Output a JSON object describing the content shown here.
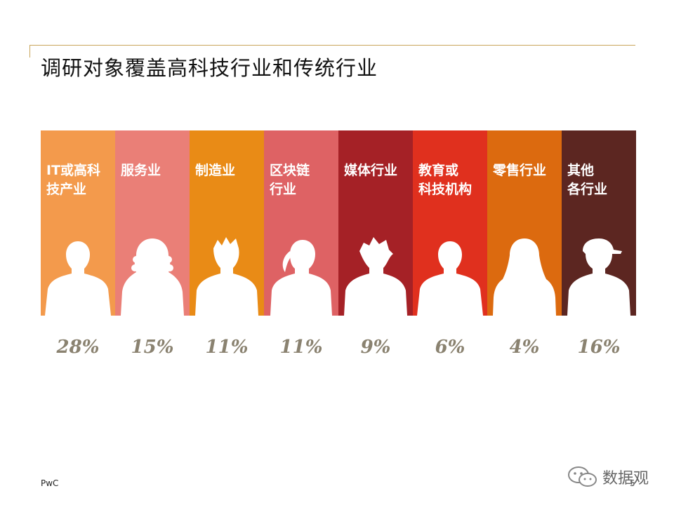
{
  "slide": {
    "title": "调研对象覆盖高科技行业和传统行业",
    "footer_brand": "PwC",
    "page_number": "5",
    "watermark_text": "数据观"
  },
  "segments": [
    {
      "label": "IT或高科\n技产业",
      "percent": "28%",
      "color": "#f39a4c",
      "icon": "male-silhouette"
    },
    {
      "label": "服务业",
      "percent": "15%",
      "color": "#ea7f77",
      "icon": "curly-hair-female-silhouette"
    },
    {
      "label": "制造业",
      "percent": "11%",
      "color": "#e98b16",
      "icon": "spiky-hair-silhouette"
    },
    {
      "label": "区块链\n行业",
      "percent": "11%",
      "color": "#de6264",
      "icon": "ponytail-female-silhouette"
    },
    {
      "label": "媒体行业",
      "percent": "9%",
      "color": "#a52126",
      "icon": "messy-hair-silhouette"
    },
    {
      "label": "教育或\n科技机构",
      "percent": "6%",
      "color": "#e0301e",
      "icon": "male-silhouette"
    },
    {
      "label": "零售行业",
      "percent": "4%",
      "color": "#dc6a0f",
      "icon": "long-hair-female-silhouette"
    },
    {
      "label": "其他\n各行业",
      "percent": "16%",
      "color": "#5c2621",
      "icon": "cap-wearing-silhouette"
    }
  ]
}
